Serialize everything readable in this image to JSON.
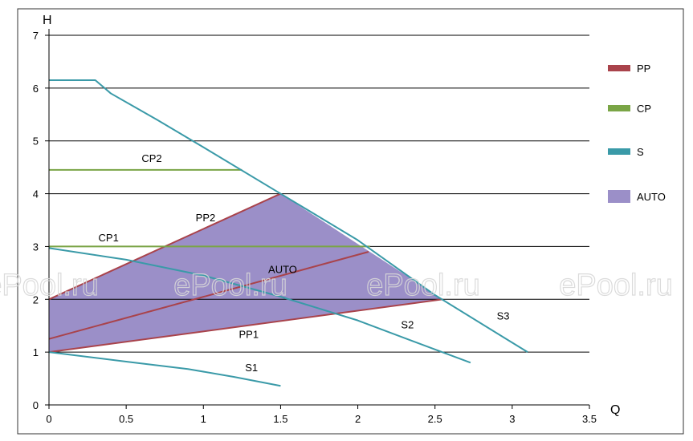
{
  "chart_data": {
    "type": "line",
    "xlabel": "Q",
    "ylabel": "H",
    "xlim": [
      0,
      3.5
    ],
    "ylim": [
      0,
      7
    ],
    "grid": "horizontal",
    "legend_position": "right",
    "x_ticks": [
      "0",
      "0.5",
      "1",
      "1.5",
      "2",
      "2.5",
      "3",
      "3.5"
    ],
    "y_ticks": [
      "0",
      "1",
      "2",
      "3",
      "4",
      "5",
      "6",
      "7"
    ],
    "legend": [
      {
        "label": "PP",
        "color": "#a9434b",
        "kind": "line"
      },
      {
        "label": "CP",
        "color": "#7aa546",
        "kind": "line"
      },
      {
        "label": "S",
        "color": "#3a9aa8",
        "kind": "line"
      },
      {
        "label": "AUTO",
        "color": "#9b8fc8",
        "kind": "area"
      }
    ],
    "areas": [
      {
        "name": "AUTO",
        "label": "AUTO",
        "color": "#9b8fc8",
        "points": [
          [
            0,
            1
          ],
          [
            0,
            2
          ],
          [
            1.5,
            4
          ],
          [
            2.55,
            2
          ],
          [
            0,
            1
          ]
        ]
      }
    ],
    "series": [
      {
        "name": "PP1",
        "label": "PP1",
        "color": "#a9434b",
        "points": [
          [
            0,
            1
          ],
          [
            2.55,
            2
          ]
        ]
      },
      {
        "name": "PP2",
        "label": "PP2",
        "color": "#a9434b",
        "points": [
          [
            0,
            2
          ],
          [
            1.5,
            4
          ]
        ]
      },
      {
        "name": "PP-mid",
        "label": "",
        "color": "#a9434b",
        "points": [
          [
            0,
            1.25
          ],
          [
            2.07,
            2.9
          ]
        ]
      },
      {
        "name": "CP1",
        "label": "CP1",
        "color": "#7aa546",
        "points": [
          [
            0,
            3.0
          ],
          [
            2.08,
            3.0
          ]
        ]
      },
      {
        "name": "CP2",
        "label": "CP2",
        "color": "#7aa546",
        "points": [
          [
            0,
            4.45
          ],
          [
            1.25,
            4.45
          ]
        ]
      },
      {
        "name": "S1",
        "label": "S1",
        "color": "#3a9aa8",
        "points": [
          [
            0,
            1.0
          ],
          [
            0.5,
            0.82
          ],
          [
            0.9,
            0.68
          ],
          [
            1.2,
            0.53
          ],
          [
            1.5,
            0.36
          ]
        ]
      },
      {
        "name": "S2",
        "label": "S2",
        "color": "#3a9aa8",
        "points": [
          [
            0,
            2.97
          ],
          [
            0.5,
            2.75
          ],
          [
            1.0,
            2.45
          ],
          [
            1.5,
            2.05
          ],
          [
            2.0,
            1.6
          ],
          [
            2.5,
            1.05
          ],
          [
            2.73,
            0.8
          ]
        ]
      },
      {
        "name": "S3",
        "label": "S3",
        "color": "#3a9aa8",
        "points": [
          [
            0,
            6.15
          ],
          [
            0.3,
            6.15
          ],
          [
            0.4,
            5.9
          ],
          [
            0.7,
            5.4
          ],
          [
            1.0,
            4.88
          ],
          [
            1.5,
            4.0
          ],
          [
            2.0,
            3.12
          ],
          [
            2.5,
            2.08
          ],
          [
            3.1,
            1.0
          ]
        ]
      }
    ],
    "labels": [
      {
        "text": "CP2",
        "x": 0.6,
        "y": 4.6
      },
      {
        "text": "PP2",
        "x": 0.95,
        "y": 3.48
      },
      {
        "text": "CP1",
        "x": 0.32,
        "y": 3.1
      },
      {
        "text": "AUTO",
        "x": 1.42,
        "y": 2.5
      },
      {
        "text": "PP1",
        "x": 1.23,
        "y": 1.27
      },
      {
        "text": "S2",
        "x": 2.28,
        "y": 1.45
      },
      {
        "text": "S3",
        "x": 2.9,
        "y": 1.62
      },
      {
        "text": "S1",
        "x": 1.27,
        "y": 0.64
      }
    ],
    "watermarks": [
      "ePool.ru",
      "ePool.ru",
      "ePool.ru",
      "ePool.ru"
    ]
  }
}
